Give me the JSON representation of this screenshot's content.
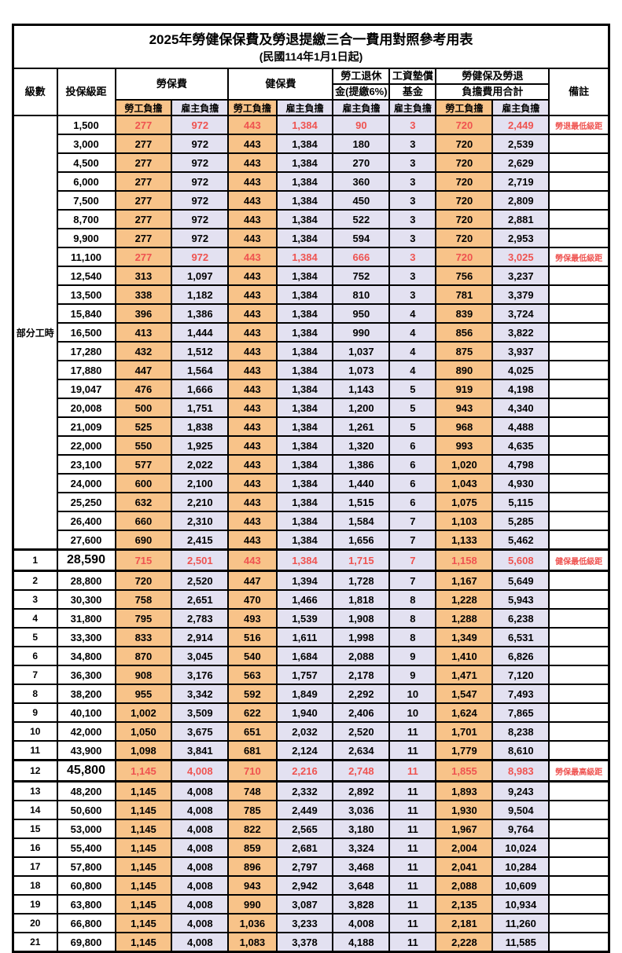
{
  "title": "2025年勞健保保費及勞退提繳三合一費用對照參考用表",
  "subtitle": "(民國114年1月1日起)",
  "colors": {
    "worker_bg": "#F8C389",
    "employer_bg": "#E3E1F1",
    "highlight_red": "#EF5350",
    "border": "#000000"
  },
  "header": {
    "level": "級數",
    "bracket": "投保級距",
    "labor_insurance": "勞保費",
    "health_insurance": "健保費",
    "pension_line1": "勞工退休",
    "pension_line2": "金(提繳6%)",
    "wage_fund_line1": "工資墊償",
    "wage_fund_line2": "基金",
    "total_line1": "勞健保及勞退",
    "total_line2": "負擔費用合計",
    "worker_burden": "勞工負擔",
    "employer_burden": "雇主負擔",
    "remarks": "備註"
  },
  "part_time_label": "部分工時",
  "part_time_rowspan": 23,
  "rows": [
    {
      "level": "",
      "bracket": "1,500",
      "li_w": "277",
      "li_e": "972",
      "hi_w": "443",
      "hi_e": "1,384",
      "pension": "90",
      "fund": "3",
      "tot_w": "720",
      "tot_e": "2,449",
      "remark": "勞退最低級距",
      "red": true
    },
    {
      "level": "",
      "bracket": "3,000",
      "li_w": "277",
      "li_e": "972",
      "hi_w": "443",
      "hi_e": "1,384",
      "pension": "180",
      "fund": "3",
      "tot_w": "720",
      "tot_e": "2,539",
      "remark": ""
    },
    {
      "level": "",
      "bracket": "4,500",
      "li_w": "277",
      "li_e": "972",
      "hi_w": "443",
      "hi_e": "1,384",
      "pension": "270",
      "fund": "3",
      "tot_w": "720",
      "tot_e": "2,629",
      "remark": ""
    },
    {
      "level": "",
      "bracket": "6,000",
      "li_w": "277",
      "li_e": "972",
      "hi_w": "443",
      "hi_e": "1,384",
      "pension": "360",
      "fund": "3",
      "tot_w": "720",
      "tot_e": "2,719",
      "remark": ""
    },
    {
      "level": "",
      "bracket": "7,500",
      "li_w": "277",
      "li_e": "972",
      "hi_w": "443",
      "hi_e": "1,384",
      "pension": "450",
      "fund": "3",
      "tot_w": "720",
      "tot_e": "2,809",
      "remark": ""
    },
    {
      "level": "",
      "bracket": "8,700",
      "li_w": "277",
      "li_e": "972",
      "hi_w": "443",
      "hi_e": "1,384",
      "pension": "522",
      "fund": "3",
      "tot_w": "720",
      "tot_e": "2,881",
      "remark": ""
    },
    {
      "level": "",
      "bracket": "9,900",
      "li_w": "277",
      "li_e": "972",
      "hi_w": "443",
      "hi_e": "1,384",
      "pension": "594",
      "fund": "3",
      "tot_w": "720",
      "tot_e": "2,953",
      "remark": ""
    },
    {
      "level": "",
      "bracket": "11,100",
      "li_w": "277",
      "li_e": "972",
      "hi_w": "443",
      "hi_e": "1,384",
      "pension": "666",
      "fund": "3",
      "tot_w": "720",
      "tot_e": "3,025",
      "remark": "勞保最低級距",
      "red": true
    },
    {
      "level": "",
      "bracket": "12,540",
      "li_w": "313",
      "li_e": "1,097",
      "hi_w": "443",
      "hi_e": "1,384",
      "pension": "752",
      "fund": "3",
      "tot_w": "756",
      "tot_e": "3,237",
      "remark": ""
    },
    {
      "level": "",
      "bracket": "13,500",
      "li_w": "338",
      "li_e": "1,182",
      "hi_w": "443",
      "hi_e": "1,384",
      "pension": "810",
      "fund": "3",
      "tot_w": "781",
      "tot_e": "3,379",
      "remark": ""
    },
    {
      "level": "",
      "bracket": "15,840",
      "li_w": "396",
      "li_e": "1,386",
      "hi_w": "443",
      "hi_e": "1,384",
      "pension": "950",
      "fund": "4",
      "tot_w": "839",
      "tot_e": "3,724",
      "remark": ""
    },
    {
      "level": "",
      "bracket": "16,500",
      "li_w": "413",
      "li_e": "1,444",
      "hi_w": "443",
      "hi_e": "1,384",
      "pension": "990",
      "fund": "4",
      "tot_w": "856",
      "tot_e": "3,822",
      "remark": ""
    },
    {
      "level": "",
      "bracket": "17,280",
      "li_w": "432",
      "li_e": "1,512",
      "hi_w": "443",
      "hi_e": "1,384",
      "pension": "1,037",
      "fund": "4",
      "tot_w": "875",
      "tot_e": "3,937",
      "remark": ""
    },
    {
      "level": "",
      "bracket": "17,880",
      "li_w": "447",
      "li_e": "1,564",
      "hi_w": "443",
      "hi_e": "1,384",
      "pension": "1,073",
      "fund": "4",
      "tot_w": "890",
      "tot_e": "4,025",
      "remark": ""
    },
    {
      "level": "",
      "bracket": "19,047",
      "li_w": "476",
      "li_e": "1,666",
      "hi_w": "443",
      "hi_e": "1,384",
      "pension": "1,143",
      "fund": "5",
      "tot_w": "919",
      "tot_e": "4,198",
      "remark": ""
    },
    {
      "level": "",
      "bracket": "20,008",
      "li_w": "500",
      "li_e": "1,751",
      "hi_w": "443",
      "hi_e": "1,384",
      "pension": "1,200",
      "fund": "5",
      "tot_w": "943",
      "tot_e": "4,340",
      "remark": ""
    },
    {
      "level": "",
      "bracket": "21,009",
      "li_w": "525",
      "li_e": "1,838",
      "hi_w": "443",
      "hi_e": "1,384",
      "pension": "1,261",
      "fund": "5",
      "tot_w": "968",
      "tot_e": "4,488",
      "remark": ""
    },
    {
      "level": "",
      "bracket": "22,000",
      "li_w": "550",
      "li_e": "1,925",
      "hi_w": "443",
      "hi_e": "1,384",
      "pension": "1,320",
      "fund": "6",
      "tot_w": "993",
      "tot_e": "4,635",
      "remark": ""
    },
    {
      "level": "",
      "bracket": "23,100",
      "li_w": "577",
      "li_e": "2,022",
      "hi_w": "443",
      "hi_e": "1,384",
      "pension": "1,386",
      "fund": "6",
      "tot_w": "1,020",
      "tot_e": "4,798",
      "remark": ""
    },
    {
      "level": "",
      "bracket": "24,000",
      "li_w": "600",
      "li_e": "2,100",
      "hi_w": "443",
      "hi_e": "1,384",
      "pension": "1,440",
      "fund": "6",
      "tot_w": "1,043",
      "tot_e": "4,930",
      "remark": ""
    },
    {
      "level": "",
      "bracket": "25,250",
      "li_w": "632",
      "li_e": "2,210",
      "hi_w": "443",
      "hi_e": "1,384",
      "pension": "1,515",
      "fund": "6",
      "tot_w": "1,075",
      "tot_e": "5,115",
      "remark": ""
    },
    {
      "level": "",
      "bracket": "26,400",
      "li_w": "660",
      "li_e": "2,310",
      "hi_w": "443",
      "hi_e": "1,384",
      "pension": "1,584",
      "fund": "7",
      "tot_w": "1,103",
      "tot_e": "5,285",
      "remark": ""
    },
    {
      "level": "",
      "bracket": "27,600",
      "li_w": "690",
      "li_e": "2,415",
      "hi_w": "443",
      "hi_e": "1,384",
      "pension": "1,656",
      "fund": "7",
      "tot_w": "1,133",
      "tot_e": "5,462",
      "remark": ""
    },
    {
      "level": "1",
      "bracket": "28,590",
      "li_w": "715",
      "li_e": "2,501",
      "hi_w": "443",
      "hi_e": "1,384",
      "pension": "1,715",
      "fund": "7",
      "tot_w": "1,158",
      "tot_e": "5,608",
      "remark": "健保最低級距",
      "red": true,
      "thick": true,
      "big": true
    },
    {
      "level": "2",
      "bracket": "28,800",
      "li_w": "720",
      "li_e": "2,520",
      "hi_w": "447",
      "hi_e": "1,394",
      "pension": "1,728",
      "fund": "7",
      "tot_w": "1,167",
      "tot_e": "5,649",
      "remark": ""
    },
    {
      "level": "3",
      "bracket": "30,300",
      "li_w": "758",
      "li_e": "2,651",
      "hi_w": "470",
      "hi_e": "1,466",
      "pension": "1,818",
      "fund": "8",
      "tot_w": "1,228",
      "tot_e": "5,943",
      "remark": ""
    },
    {
      "level": "4",
      "bracket": "31,800",
      "li_w": "795",
      "li_e": "2,783",
      "hi_w": "493",
      "hi_e": "1,539",
      "pension": "1,908",
      "fund": "8",
      "tot_w": "1,288",
      "tot_e": "6,238",
      "remark": ""
    },
    {
      "level": "5",
      "bracket": "33,300",
      "li_w": "833",
      "li_e": "2,914",
      "hi_w": "516",
      "hi_e": "1,611",
      "pension": "1,998",
      "fund": "8",
      "tot_w": "1,349",
      "tot_e": "6,531",
      "remark": ""
    },
    {
      "level": "6",
      "bracket": "34,800",
      "li_w": "870",
      "li_e": "3,045",
      "hi_w": "540",
      "hi_e": "1,684",
      "pension": "2,088",
      "fund": "9",
      "tot_w": "1,410",
      "tot_e": "6,826",
      "remark": ""
    },
    {
      "level": "7",
      "bracket": "36,300",
      "li_w": "908",
      "li_e": "3,176",
      "hi_w": "563",
      "hi_e": "1,757",
      "pension": "2,178",
      "fund": "9",
      "tot_w": "1,471",
      "tot_e": "7,120",
      "remark": ""
    },
    {
      "level": "8",
      "bracket": "38,200",
      "li_w": "955",
      "li_e": "3,342",
      "hi_w": "592",
      "hi_e": "1,849",
      "pension": "2,292",
      "fund": "10",
      "tot_w": "1,547",
      "tot_e": "7,493",
      "remark": ""
    },
    {
      "level": "9",
      "bracket": "40,100",
      "li_w": "1,002",
      "li_e": "3,509",
      "hi_w": "622",
      "hi_e": "1,940",
      "pension": "2,406",
      "fund": "10",
      "tot_w": "1,624",
      "tot_e": "7,865",
      "remark": ""
    },
    {
      "level": "10",
      "bracket": "42,000",
      "li_w": "1,050",
      "li_e": "3,675",
      "hi_w": "651",
      "hi_e": "2,032",
      "pension": "2,520",
      "fund": "11",
      "tot_w": "1,701",
      "tot_e": "8,238",
      "remark": ""
    },
    {
      "level": "11",
      "bracket": "43,900",
      "li_w": "1,098",
      "li_e": "3,841",
      "hi_w": "681",
      "hi_e": "2,124",
      "pension": "2,634",
      "fund": "11",
      "tot_w": "1,779",
      "tot_e": "8,610",
      "remark": ""
    },
    {
      "level": "12",
      "bracket": "45,800",
      "li_w": "1,145",
      "li_e": "4,008",
      "hi_w": "710",
      "hi_e": "2,216",
      "pension": "2,748",
      "fund": "11",
      "tot_w": "1,855",
      "tot_e": "8,983",
      "remark": "勞保最高級距",
      "red": true,
      "thick": true,
      "big": true
    },
    {
      "level": "13",
      "bracket": "48,200",
      "li_w": "1,145",
      "li_e": "4,008",
      "hi_w": "748",
      "hi_e": "2,332",
      "pension": "2,892",
      "fund": "11",
      "tot_w": "1,893",
      "tot_e": "9,243",
      "remark": ""
    },
    {
      "level": "14",
      "bracket": "50,600",
      "li_w": "1,145",
      "li_e": "4,008",
      "hi_w": "785",
      "hi_e": "2,449",
      "pension": "3,036",
      "fund": "11",
      "tot_w": "1,930",
      "tot_e": "9,504",
      "remark": ""
    },
    {
      "level": "15",
      "bracket": "53,000",
      "li_w": "1,145",
      "li_e": "4,008",
      "hi_w": "822",
      "hi_e": "2,565",
      "pension": "3,180",
      "fund": "11",
      "tot_w": "1,967",
      "tot_e": "9,764",
      "remark": ""
    },
    {
      "level": "16",
      "bracket": "55,400",
      "li_w": "1,145",
      "li_e": "4,008",
      "hi_w": "859",
      "hi_e": "2,681",
      "pension": "3,324",
      "fund": "11",
      "tot_w": "2,004",
      "tot_e": "10,024",
      "remark": ""
    },
    {
      "level": "17",
      "bracket": "57,800",
      "li_w": "1,145",
      "li_e": "4,008",
      "hi_w": "896",
      "hi_e": "2,797",
      "pension": "3,468",
      "fund": "11",
      "tot_w": "2,041",
      "tot_e": "10,284",
      "remark": ""
    },
    {
      "level": "18",
      "bracket": "60,800",
      "li_w": "1,145",
      "li_e": "4,008",
      "hi_w": "943",
      "hi_e": "2,942",
      "pension": "3,648",
      "fund": "11",
      "tot_w": "2,088",
      "tot_e": "10,609",
      "remark": ""
    },
    {
      "level": "19",
      "bracket": "63,800",
      "li_w": "1,145",
      "li_e": "4,008",
      "hi_w": "990",
      "hi_e": "3,087",
      "pension": "3,828",
      "fund": "11",
      "tot_w": "2,135",
      "tot_e": "10,934",
      "remark": ""
    },
    {
      "level": "20",
      "bracket": "66,800",
      "li_w": "1,145",
      "li_e": "4,008",
      "hi_w": "1,036",
      "hi_e": "3,233",
      "pension": "4,008",
      "fund": "11",
      "tot_w": "2,181",
      "tot_e": "11,260",
      "remark": ""
    },
    {
      "level": "21",
      "bracket": "69,800",
      "li_w": "1,145",
      "li_e": "4,008",
      "hi_w": "1,083",
      "hi_e": "3,378",
      "pension": "4,188",
      "fund": "11",
      "tot_w": "2,228",
      "tot_e": "11,585",
      "remark": ""
    }
  ]
}
